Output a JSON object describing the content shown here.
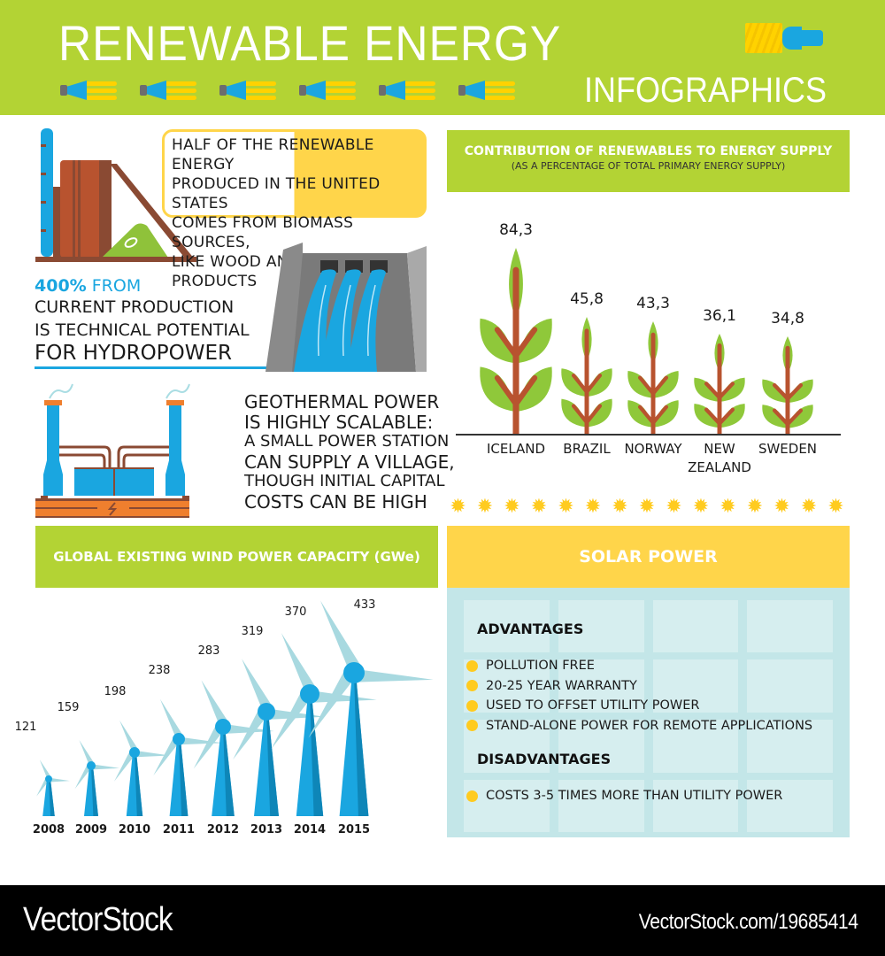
{
  "header": {
    "title": "RENEWABLE ENERGY",
    "subtitle": "INFOGRAPHICS",
    "bulb_icon_count": 6,
    "colors": {
      "green": "#b3d334",
      "yellow": "#ffd200",
      "blue": "#1aa6e0"
    }
  },
  "biomass": {
    "lines": [
      "HALF OF THE RENEWABLE ENERGY",
      "PRODUCED IN THE UNITED STATES",
      "COMES FROM BIOMASS SOURCES,",
      "LIKE WOOD AND PAPER PRODUCTS"
    ]
  },
  "hydropower": {
    "highlight": "400%",
    "highlight_suffix": " FROM",
    "lines": [
      "CURRENT PRODUCTION",
      "IS TECHNICAL POTENTIAL",
      "FOR HYDROPOWER"
    ]
  },
  "geothermal": {
    "lines": [
      "GEOTHERMAL POWER",
      "IS HIGHLY SCALABLE:",
      "A SMALL POWER STATION",
      "CAN SUPPLY A VILLAGE,",
      "THOUGH INITIAL CAPITAL",
      "COSTS CAN BE HIGH"
    ]
  },
  "contribution": {
    "title": "CONTRIBUTION OF RENEWABLES TO ENERGY SUPPLY",
    "subtitle": "(AS A PERCENTAGE OF TOTAL PRIMARY ENERGY SUPPLY)",
    "items": [
      {
        "label": "ICELAND",
        "label2": "",
        "value": "84,3"
      },
      {
        "label": "BRAZIL",
        "label2": "",
        "value": "45,8"
      },
      {
        "label": "NORWAY",
        "label2": "",
        "value": "43,3"
      },
      {
        "label": "NEW",
        "label2": "ZEALAND",
        "value": "36,1"
      },
      {
        "label": "SWEDEN",
        "label2": "",
        "value": "34,8"
      }
    ]
  },
  "wind": {
    "title": "GLOBAL EXISTING WIND POWER CAPACITY (GWe)",
    "items": [
      {
        "year": "2008",
        "value": "121"
      },
      {
        "year": "2009",
        "value": "159"
      },
      {
        "year": "2010",
        "value": "198"
      },
      {
        "year": "2011",
        "value": "238"
      },
      {
        "year": "2012",
        "value": "283"
      },
      {
        "year": "2013",
        "value": "319"
      },
      {
        "year": "2014",
        "value": "370"
      },
      {
        "year": "2015",
        "value": "433"
      }
    ]
  },
  "solar": {
    "title": "SOLAR POWER",
    "sun_icon_count": 15,
    "advantages_title": "ADVANTAGES",
    "advantages": [
      "POLLUTION FREE",
      "20-25 YEAR WARRANTY",
      "USED TO OFFSET UTILITY POWER",
      "STAND-ALONE POWER FOR REMOTE APPLICATIONS"
    ],
    "disadvantages_title": "DISADVANTAGES",
    "disadvantages": [
      "COSTS 3-5 TIMES MORE THAN UTILITY POWER"
    ]
  },
  "footer": {
    "brand": "VectorStock",
    "url": "VectorStock.com/19685414"
  },
  "chart_data": [
    {
      "type": "bar",
      "title": "CONTRIBUTION OF RENEWABLES TO ENERGY SUPPLY",
      "subtitle": "(AS A PERCENTAGE OF TOTAL PRIMARY ENERGY SUPPLY)",
      "categories": [
        "ICELAND",
        "BRAZIL",
        "NORWAY",
        "NEW ZEALAND",
        "SWEDEN"
      ],
      "values": [
        84.3,
        45.8,
        43.3,
        36.1,
        34.8
      ],
      "xlabel": "",
      "ylabel": "% of total primary energy supply",
      "grid": false,
      "legend": "none",
      "marker": "tree pictograms"
    },
    {
      "type": "bar",
      "title": "GLOBAL EXISTING WIND POWER CAPACITY (GWe)",
      "categories": [
        "2008",
        "2009",
        "2010",
        "2011",
        "2012",
        "2013",
        "2014",
        "2015"
      ],
      "values": [
        121,
        159,
        198,
        238,
        283,
        319,
        370,
        433
      ],
      "xlabel": "",
      "ylabel": "GWe",
      "grid": false,
      "legend": "none",
      "marker": "wind turbine pictograms"
    }
  ]
}
